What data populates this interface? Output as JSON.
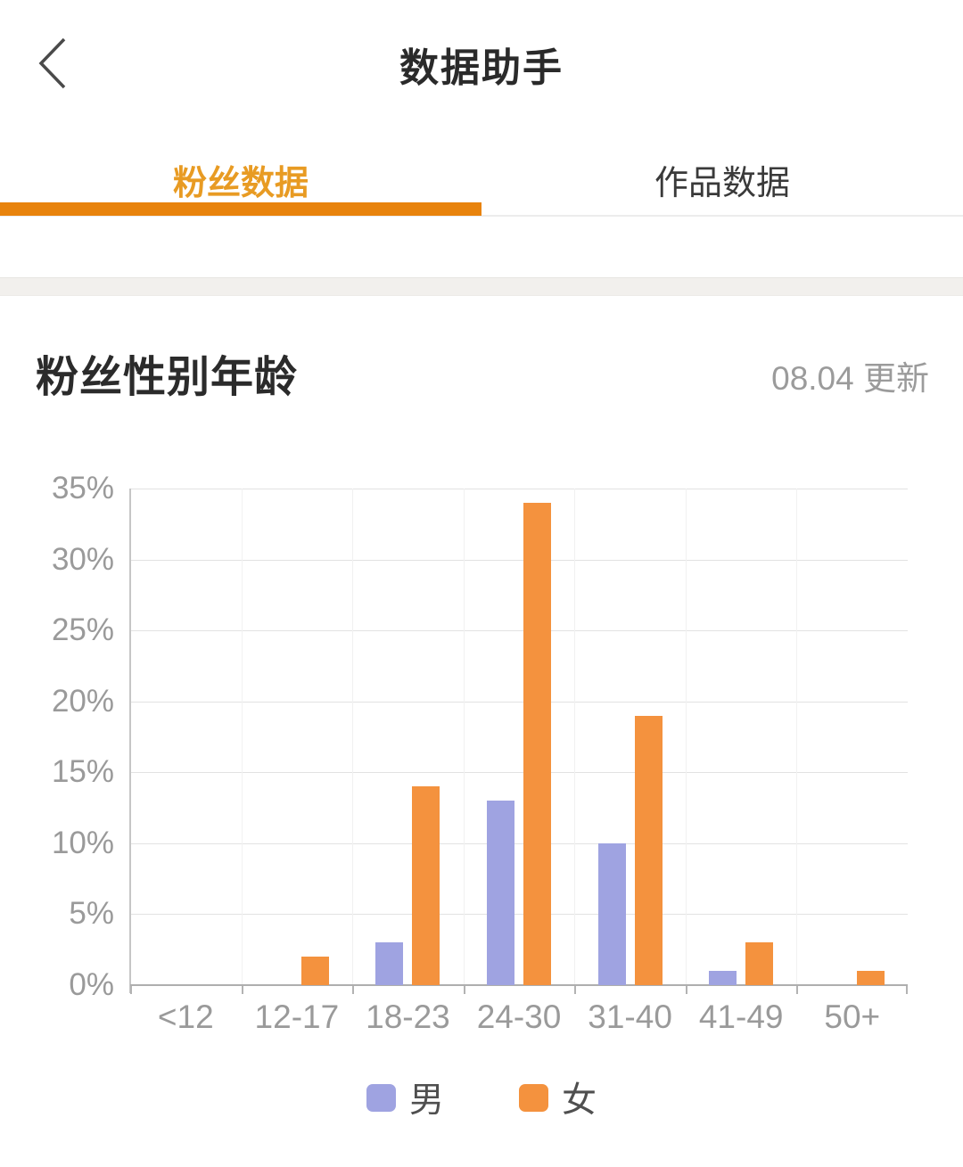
{
  "header": {
    "title": "数据助手",
    "back_icon": "chevron-left"
  },
  "tabs": [
    {
      "label": "粉丝数据",
      "active": true
    },
    {
      "label": "作品数据",
      "active": false
    }
  ],
  "section": {
    "title": "粉丝性别年龄",
    "updated": "08.04 更新"
  },
  "chart_data": {
    "type": "bar",
    "title": "粉丝性别年龄",
    "categories": [
      "<12",
      "12-17",
      "18-23",
      "24-30",
      "31-40",
      "41-49",
      "50+"
    ],
    "series": [
      {
        "name": "男",
        "color": "#9FA3E1",
        "values": [
          0,
          0,
          3,
          13,
          10,
          1,
          0
        ]
      },
      {
        "name": "女",
        "color": "#F4923E",
        "values": [
          0,
          2,
          14,
          34,
          19,
          3,
          1
        ]
      }
    ],
    "xlabel": "",
    "ylabel": "",
    "ylim": [
      0,
      35
    ],
    "ytick_step": 5,
    "ytick_labels": [
      "0%",
      "5%",
      "10%",
      "15%",
      "20%",
      "25%",
      "30%",
      "35%"
    ],
    "grid": true,
    "legend_position": "bottom"
  },
  "colors": {
    "accent_orange": "#E8830D",
    "active_tab_text": "#E89B23",
    "male_bar": "#9FA3E1",
    "female_bar": "#F4923E"
  }
}
